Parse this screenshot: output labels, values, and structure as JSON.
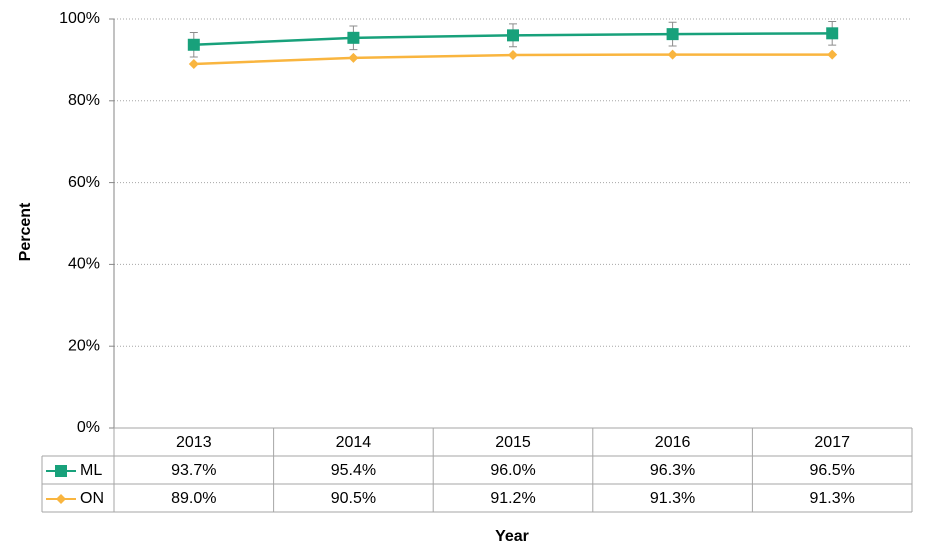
{
  "chart_data": {
    "type": "line",
    "x_label": "Year",
    "y_label": "Percent",
    "categories": [
      "2013",
      "2014",
      "2015",
      "2016",
      "2017"
    ],
    "series": [
      {
        "name": "ML",
        "color": "#18a17b",
        "marker": "square",
        "values": [
          93.7,
          95.4,
          96.0,
          96.3,
          96.5
        ],
        "value_labels": [
          "93.7%",
          "95.4%",
          "96.0%",
          "96.3%",
          "96.5%"
        ],
        "errors": [
          3,
          2.9,
          2.8,
          2.9,
          2.9
        ]
      },
      {
        "name": "ON",
        "color": "#f9b53f",
        "marker": "diamond",
        "values": [
          89.0,
          90.5,
          91.2,
          91.3,
          91.3
        ],
        "value_labels": [
          "89.0%",
          "90.5%",
          "91.2%",
          "91.3%",
          "91.3%"
        ]
      }
    ],
    "ylim": [
      0,
      100
    ],
    "yticks": [
      {
        "value": 0,
        "label": "0%"
      },
      {
        "value": 20,
        "label": "20%"
      },
      {
        "value": 40,
        "label": "40%"
      },
      {
        "value": 60,
        "label": "60%"
      },
      {
        "value": 80,
        "label": "80%"
      },
      {
        "value": 100,
        "label": "100%"
      }
    ],
    "grid": true
  }
}
